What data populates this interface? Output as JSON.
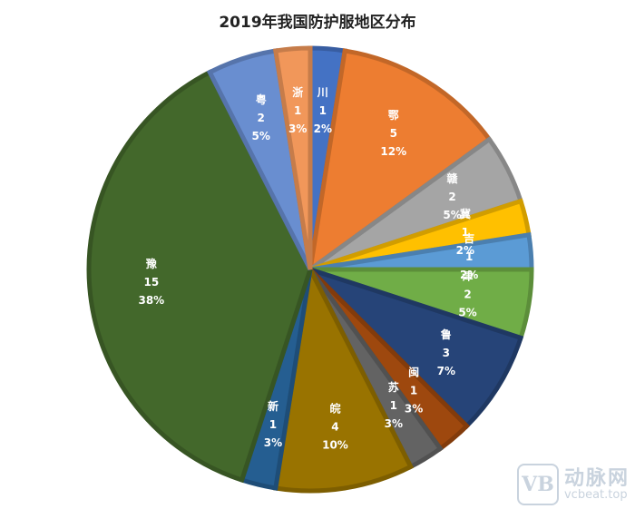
{
  "chart_data": {
    "type": "pie",
    "title": "2019年我国防护服地区分布",
    "slices": [
      {
        "label": "川",
        "value": 1,
        "percent": "2%",
        "color": "#4472C4"
      },
      {
        "label": "鄂",
        "value": 5,
        "percent": "12%",
        "color": "#ED7D31"
      },
      {
        "label": "赣",
        "value": 2,
        "percent": "5%",
        "color": "#A5A5A5"
      },
      {
        "label": "冀",
        "value": 1,
        "percent": "2%",
        "color": "#FFC000"
      },
      {
        "label": "吉",
        "value": 1,
        "percent": "2%",
        "color": "#5B9BD5"
      },
      {
        "label": "津",
        "value": 2,
        "percent": "5%",
        "color": "#70AD47"
      },
      {
        "label": "鲁",
        "value": 3,
        "percent": "7%",
        "color": "#264478"
      },
      {
        "label": "闽",
        "value": 1,
        "percent": "3%",
        "color": "#9E480E"
      },
      {
        "label": "苏",
        "value": 1,
        "percent": "3%",
        "color": "#636363"
      },
      {
        "label": "皖",
        "value": 4,
        "percent": "10%",
        "color": "#997300"
      },
      {
        "label": "新",
        "value": 1,
        "percent": "3%",
        "color": "#255E91"
      },
      {
        "label": "豫",
        "value": 15,
        "percent": "38%",
        "color": "#43682B"
      },
      {
        "label": "粤",
        "value": 2,
        "percent": "5%",
        "color": "#698ED0"
      },
      {
        "label": "浙",
        "value": 1,
        "percent": "3%",
        "color": "#F1975A"
      }
    ]
  },
  "watermark": {
    "logo": "VB",
    "brand": "动脉网",
    "url": "vcbeat.top"
  }
}
